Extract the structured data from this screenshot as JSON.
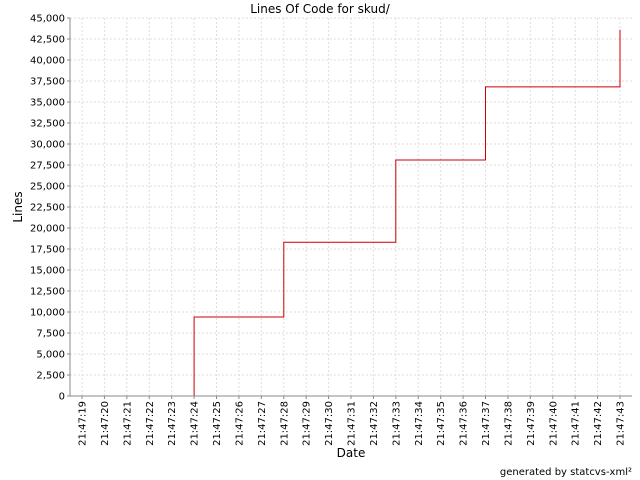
{
  "chart_data": {
    "type": "line",
    "title": "Lines Of Code for skud/",
    "xlabel": "Date",
    "ylabel": "Lines",
    "footer": "generated by statcvs-xml²",
    "x_ticks": [
      "21:47:19",
      "21:47:20",
      "21:47:21",
      "21:47:22",
      "21:47:23",
      "21:47:24",
      "21:47:25",
      "21:47:26",
      "21:47:27",
      "21:47:28",
      "21:47:29",
      "21:47:30",
      "21:47:31",
      "21:47:32",
      "21:47:33",
      "21:47:34",
      "21:47:35",
      "21:47:36",
      "21:47:37",
      "21:47:38",
      "21:47:39",
      "21:47:40",
      "21:47:41",
      "21:47:42",
      "21:47:43"
    ],
    "y_ticks": [
      0,
      2500,
      5000,
      7500,
      10000,
      12500,
      15000,
      17500,
      20000,
      22500,
      25000,
      27500,
      30000,
      32500,
      35000,
      37500,
      40000,
      42500,
      45000
    ],
    "ylim": [
      0,
      45000
    ],
    "grid": true,
    "series_color": "#cc0000",
    "series": [
      {
        "x": [
          "21:47:19",
          "21:47:24",
          "21:47:24",
          "21:47:28",
          "21:47:28",
          "21:47:33",
          "21:47:33",
          "21:47:37",
          "21:47:37",
          "21:47:43",
          "21:47:43"
        ],
        "y": [
          0,
          0,
          9400,
          9400,
          18300,
          18300,
          28100,
          28100,
          36800,
          36800,
          43600
        ]
      }
    ]
  }
}
